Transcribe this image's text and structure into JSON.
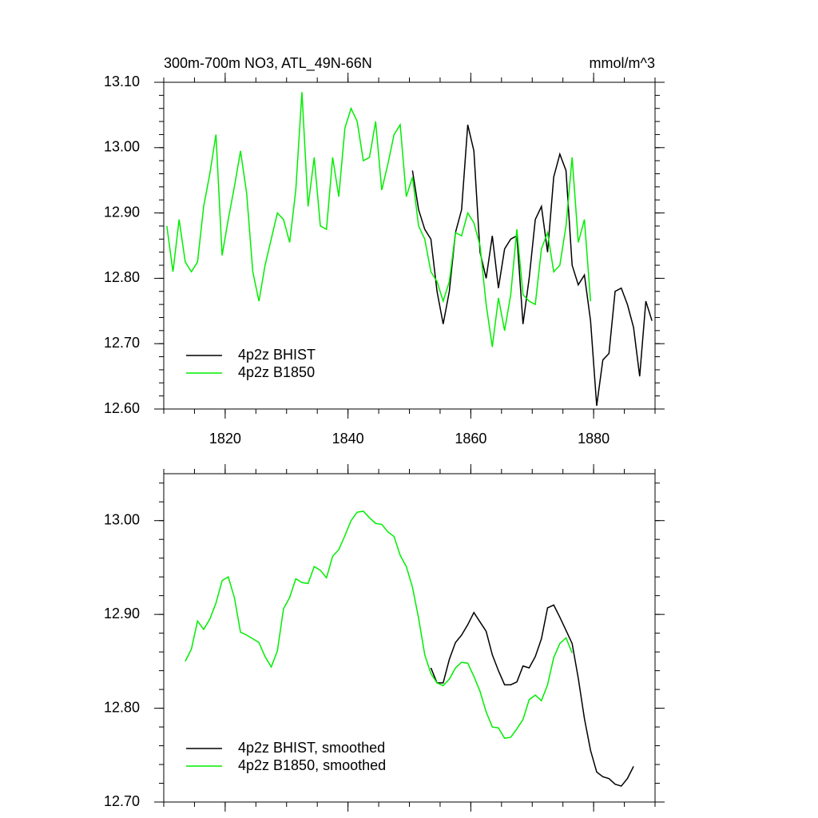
{
  "chart_data": [
    {
      "type": "line",
      "title": "300m-700m NO3, ATL_49N-66N",
      "units": "mmol/m^3",
      "xlim": [
        1810,
        1890
      ],
      "xticks": [
        1820,
        1840,
        1860,
        1880
      ],
      "ylim": [
        12.6,
        13.1
      ],
      "yticks": [
        {
          "value": 12.6,
          "label": "12.60"
        },
        {
          "value": 12.7,
          "label": "12.70"
        },
        {
          "value": 12.8,
          "label": "12.80"
        },
        {
          "value": 12.9,
          "label": "12.90"
        },
        {
          "value": 13.0,
          "label": "13.00"
        },
        {
          "value": 13.1,
          "label": "13.10"
        }
      ],
      "legend": "lower left",
      "series": [
        {
          "name": "4p2z BHIST",
          "color": "#000000",
          "x": [
            1850.5,
            1851.5,
            1852.5,
            1853.5,
            1854.5,
            1855.5,
            1856.5,
            1857.5,
            1858.5,
            1859.5,
            1860.5,
            1861.5,
            1862.5,
            1863.5,
            1864.5,
            1865.5,
            1866.5,
            1867.5,
            1868.5,
            1869.5,
            1870.5,
            1871.5,
            1872.5,
            1873.5,
            1874.5,
            1875.5,
            1876.5,
            1877.5,
            1878.5,
            1879.5,
            1880.5,
            1881.5,
            1882.5,
            1883.5,
            1884.5,
            1885.5,
            1886.5,
            1887.5,
            1888.5,
            1889.5
          ],
          "values": [
            12.965,
            12.905,
            12.875,
            12.86,
            12.78,
            12.73,
            12.78,
            12.87,
            12.905,
            13.035,
            12.995,
            12.84,
            12.8,
            12.865,
            12.785,
            12.845,
            12.86,
            12.865,
            12.73,
            12.8,
            12.89,
            12.91,
            12.84,
            12.955,
            12.99,
            12.965,
            12.82,
            12.79,
            12.805,
            12.735,
            12.605,
            12.675,
            12.685,
            12.78,
            12.785,
            12.76,
            12.725,
            12.65,
            12.765,
            12.735
          ]
        },
        {
          "name": "4p2z B1850",
          "color": "#00ee00",
          "x": [
            1810.5,
            1811.5,
            1812.5,
            1813.5,
            1814.5,
            1815.5,
            1816.5,
            1817.5,
            1818.5,
            1819.5,
            1820.5,
            1821.5,
            1822.5,
            1823.5,
            1824.5,
            1825.5,
            1826.5,
            1827.5,
            1828.5,
            1829.5,
            1830.5,
            1831.5,
            1832.5,
            1833.5,
            1834.5,
            1835.5,
            1836.5,
            1837.5,
            1838.5,
            1839.5,
            1840.5,
            1841.5,
            1842.5,
            1843.5,
            1844.5,
            1845.5,
            1846.5,
            1847.5,
            1848.5,
            1849.5,
            1850.5,
            1851.5,
            1852.5,
            1853.5,
            1854.5,
            1855.5,
            1856.5,
            1857.5,
            1858.5,
            1859.5,
            1860.5,
            1861.5,
            1862.5,
            1863.5,
            1864.5,
            1865.5,
            1866.5,
            1867.5,
            1868.5,
            1869.5,
            1870.5,
            1871.5,
            1872.5,
            1873.5,
            1874.5,
            1875.5,
            1876.5,
            1877.5,
            1878.5,
            1879.5
          ],
          "values": [
            12.88,
            12.81,
            12.89,
            12.825,
            12.81,
            12.825,
            12.91,
            12.96,
            13.02,
            12.835,
            12.89,
            12.94,
            12.995,
            12.93,
            12.81,
            12.765,
            12.82,
            12.86,
            12.9,
            12.89,
            12.855,
            12.935,
            13.085,
            12.91,
            12.985,
            12.88,
            12.875,
            12.985,
            12.925,
            13.03,
            13.06,
            13.04,
            12.98,
            12.985,
            13.04,
            12.935,
            12.975,
            13.02,
            13.035,
            12.925,
            12.955,
            12.88,
            12.86,
            12.81,
            12.795,
            12.765,
            12.795,
            12.87,
            12.865,
            12.9,
            12.885,
            12.85,
            12.76,
            12.695,
            12.77,
            12.72,
            12.775,
            12.875,
            12.775,
            12.765,
            12.76,
            12.845,
            12.87,
            12.81,
            12.82,
            12.88,
            12.985,
            12.855,
            12.89,
            12.765
          ]
        }
      ]
    },
    {
      "type": "line",
      "xlim": [
        1810,
        1890
      ],
      "xticks": [
        1820,
        1840,
        1860,
        1880
      ],
      "ylim": [
        12.7,
        13.05
      ],
      "yticks": [
        {
          "value": 12.7,
          "label": "12.70"
        },
        {
          "value": 12.8,
          "label": "12.80"
        },
        {
          "value": 12.9,
          "label": "12.90"
        },
        {
          "value": 13.0,
          "label": "13.00"
        }
      ],
      "legend": "lower left",
      "series": [
        {
          "name": "4p2z BHIST, smoothed",
          "color": "#000000",
          "x": [
            1853.5,
            1854.5,
            1855.5,
            1856.5,
            1857.5,
            1858.5,
            1859.5,
            1860.5,
            1861.5,
            1862.5,
            1863.5,
            1864.5,
            1865.5,
            1866.5,
            1867.5,
            1868.5,
            1869.5,
            1870.5,
            1871.5,
            1872.5,
            1873.5,
            1874.5,
            1875.5,
            1876.5,
            1877.5,
            1878.5,
            1879.5,
            1880.5,
            1881.5,
            1882.5,
            1883.5,
            1884.5,
            1885.5,
            1886.5
          ],
          "values": [
            12.843,
            12.827,
            12.827,
            12.852,
            12.87,
            12.878,
            12.889,
            12.902,
            12.892,
            12.882,
            12.857,
            12.84,
            12.825,
            12.825,
            12.828,
            12.845,
            12.843,
            12.855,
            12.874,
            12.907,
            12.91,
            12.897,
            12.883,
            12.869,
            12.832,
            12.789,
            12.755,
            12.732,
            12.727,
            12.725,
            12.719,
            12.717,
            12.725,
            12.738
          ]
        },
        {
          "name": "4p2z B1850, smoothed",
          "color": "#00ee00",
          "x": [
            1813.5,
            1814.5,
            1815.5,
            1816.5,
            1817.5,
            1818.5,
            1819.5,
            1820.5,
            1821.5,
            1822.5,
            1823.5,
            1824.5,
            1825.5,
            1826.5,
            1827.5,
            1828.5,
            1829.5,
            1830.5,
            1831.5,
            1832.5,
            1833.5,
            1834.5,
            1835.5,
            1836.5,
            1837.5,
            1838.5,
            1839.5,
            1840.5,
            1841.5,
            1842.5,
            1843.5,
            1844.5,
            1845.5,
            1846.5,
            1847.5,
            1848.5,
            1849.5,
            1850.5,
            1851.5,
            1852.5,
            1853.5,
            1854.5,
            1855.5,
            1856.5,
            1857.5,
            1858.5,
            1859.5,
            1860.5,
            1861.5,
            1862.5,
            1863.5,
            1864.5,
            1865.5,
            1866.5,
            1867.5,
            1868.5,
            1869.5,
            1870.5,
            1871.5,
            1872.5,
            1873.5,
            1874.5,
            1875.5,
            1876.5
          ],
          "values": [
            12.85,
            12.863,
            12.893,
            12.884,
            12.895,
            12.912,
            12.936,
            12.94,
            12.918,
            12.881,
            12.878,
            12.874,
            12.87,
            12.855,
            12.844,
            12.861,
            12.906,
            12.918,
            12.938,
            12.934,
            12.933,
            12.951,
            12.947,
            12.939,
            12.962,
            12.969,
            12.984,
            13.0,
            13.009,
            13.01,
            13.003,
            12.997,
            12.996,
            12.988,
            12.983,
            12.963,
            12.951,
            12.929,
            12.896,
            12.857,
            12.837,
            12.827,
            12.824,
            12.831,
            12.843,
            12.849,
            12.848,
            12.834,
            12.818,
            12.796,
            12.78,
            12.779,
            12.768,
            12.769,
            12.778,
            12.788,
            12.809,
            12.814,
            12.808,
            12.825,
            12.854,
            12.869,
            12.875,
            12.859
          ]
        }
      ]
    }
  ]
}
